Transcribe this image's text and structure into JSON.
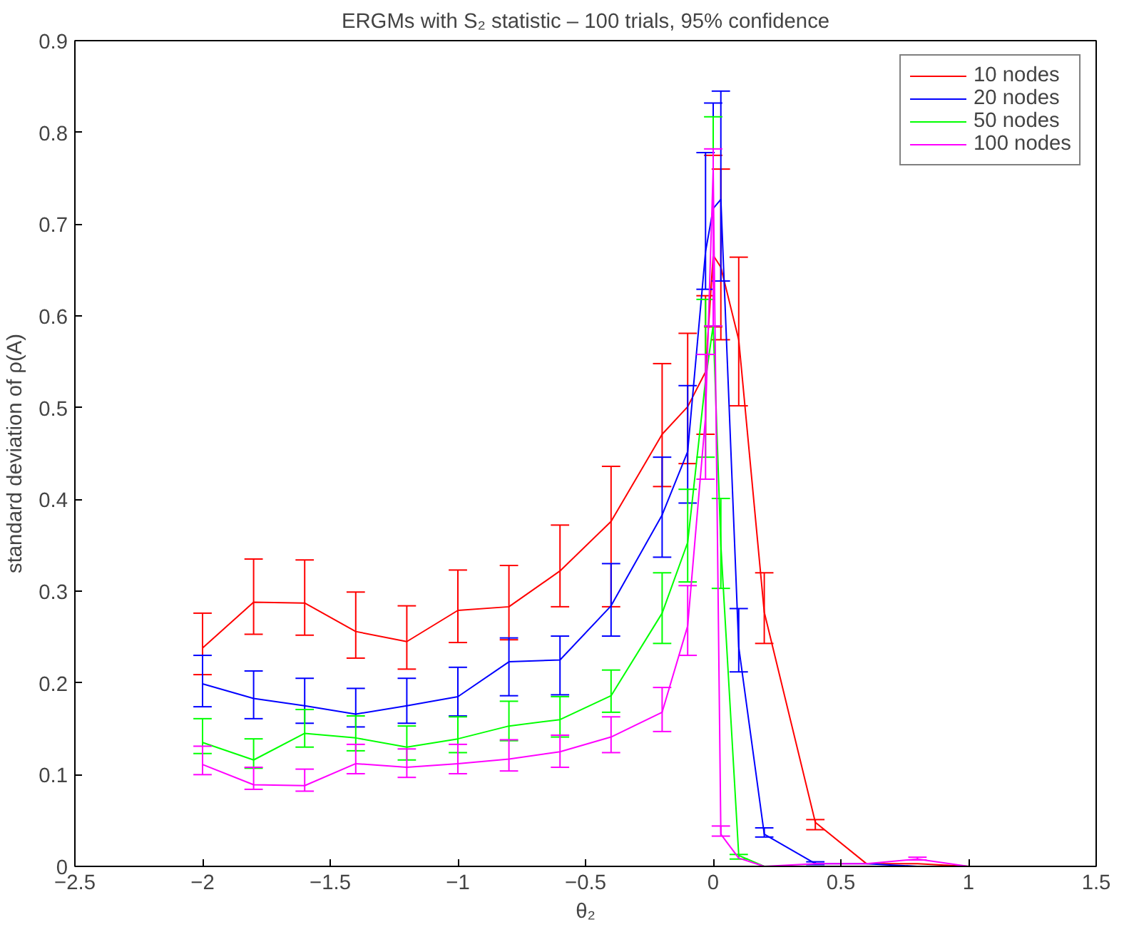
{
  "chart_data": {
    "type": "line",
    "title": "ERGMs with S₂ statistic – 100 trials, 95% confidence",
    "xlabel": "θ₂",
    "ylabel": "standard deviation of ρ(A)",
    "xlim": [
      -2.5,
      1.5
    ],
    "ylim": [
      0,
      0.9
    ],
    "xticks": [
      {
        "value": -2.5,
        "label": "−2.5"
      },
      {
        "value": -2,
        "label": "−2"
      },
      {
        "value": -1.5,
        "label": "−1.5"
      },
      {
        "value": -1,
        "label": "−1"
      },
      {
        "value": -0.5,
        "label": "−0.5"
      },
      0,
      0.5,
      1,
      1.5
    ],
    "yticks": [
      0,
      0.1,
      0.2,
      0.3,
      0.4,
      0.5,
      0.6,
      0.7,
      0.8,
      0.9
    ],
    "grid": false,
    "legend": "top right",
    "marker": "none",
    "line_style": "solid",
    "x": [
      -2,
      -1.8,
      -1.6,
      -1.4,
      -1.2,
      -1,
      -0.8,
      -0.6,
      -0.4,
      -0.2,
      -0.1,
      -0.03,
      0,
      0.03,
      0.1,
      0.2,
      0.4,
      0.6,
      0.8,
      1
    ],
    "series": [
      {
        "name": "10 nodes",
        "color": "#ff0000",
        "values": [
          0.238,
          0.288,
          0.287,
          0.256,
          0.245,
          0.279,
          0.283,
          0.322,
          0.376,
          0.471,
          0.501,
          0.539,
          0.666,
          0.653,
          0.574,
          0.277,
          0.048,
          0.003,
          0.003,
          0.0
        ],
        "errors": [
          [
            0.209,
            0.276
          ],
          [
            0.253,
            0.335
          ],
          [
            0.252,
            0.334
          ],
          [
            0.227,
            0.299
          ],
          [
            0.215,
            0.284
          ],
          [
            0.244,
            0.323
          ],
          [
            0.247,
            0.328
          ],
          [
            0.283,
            0.372
          ],
          [
            0.283,
            0.436
          ],
          [
            0.414,
            0.548
          ],
          [
            0.439,
            0.581
          ],
          [
            0.471,
            0.622
          ],
          [
            0.588,
            0.775
          ],
          [
            0.574,
            0.76
          ],
          [
            0.502,
            0.664
          ],
          [
            0.243,
            0.32
          ],
          [
            0.04,
            0.051
          ],
          null,
          null,
          null
        ]
      },
      {
        "name": "20 nodes",
        "color": "#0000ff",
        "values": [
          0.199,
          0.183,
          0.175,
          0.166,
          0.175,
          0.185,
          0.223,
          0.225,
          0.284,
          0.383,
          0.452,
          0.67,
          0.717,
          0.727,
          0.239,
          0.035,
          0.003,
          0.003,
          0.0,
          0.0
        ],
        "errors": [
          [
            0.174,
            0.23
          ],
          [
            0.161,
            0.213
          ],
          [
            0.156,
            0.205
          ],
          [
            0.152,
            0.194
          ],
          [
            0.156,
            0.205
          ],
          [
            0.164,
            0.217
          ],
          [
            0.186,
            0.249
          ],
          [
            0.187,
            0.251
          ],
          [
            0.251,
            0.33
          ],
          [
            0.337,
            0.446
          ],
          [
            0.396,
            0.524
          ],
          [
            0.629,
            0.778
          ],
          [
            0.589,
            0.832
          ],
          [
            0.638,
            0.845
          ],
          [
            0.212,
            0.281
          ],
          [
            0.032,
            0.042
          ],
          [
            0.002,
            0.005
          ],
          null,
          null,
          null
        ]
      },
      {
        "name": "50 nodes",
        "color": "#00ff00",
        "values": [
          0.135,
          0.116,
          0.145,
          0.14,
          0.13,
          0.139,
          0.153,
          0.16,
          0.186,
          0.276,
          0.353,
          0.53,
          0.59,
          0.35,
          0.012,
          0.0,
          0.0,
          null,
          null,
          null
        ],
        "errors": [
          [
            0.123,
            0.161
          ],
          [
            0.107,
            0.139
          ],
          [
            0.13,
            0.171
          ],
          [
            0.126,
            0.164
          ],
          [
            0.116,
            0.153
          ],
          [
            0.124,
            0.163
          ],
          [
            0.137,
            0.18
          ],
          [
            0.141,
            0.185
          ],
          [
            0.168,
            0.214
          ],
          [
            0.243,
            0.32
          ],
          [
            0.31,
            0.411
          ],
          [
            0.446,
            0.618
          ],
          [
            0.589,
            0.817
          ],
          [
            0.303,
            0.401
          ],
          [
            0.008,
            0.013
          ],
          null,
          null,
          null,
          null,
          null
        ]
      },
      {
        "name": "100 nodes",
        "color": "#ff00ff",
        "values": [
          0.111,
          0.089,
          0.088,
          0.112,
          0.108,
          0.112,
          0.117,
          0.125,
          0.141,
          0.168,
          0.262,
          0.49,
          0.76,
          0.035,
          0.009,
          0.0,
          0.003,
          0.003,
          0.008,
          0.0
        ],
        "errors": [
          [
            0.1,
            0.131
          ],
          [
            0.084,
            0.108
          ],
          [
            0.082,
            0.106
          ],
          [
            0.101,
            0.133
          ],
          [
            0.097,
            0.128
          ],
          [
            0.101,
            0.133
          ],
          [
            0.104,
            0.138
          ],
          [
            0.108,
            0.143
          ],
          [
            0.124,
            0.163
          ],
          [
            0.147,
            0.195
          ],
          [
            0.23,
            0.306
          ],
          [
            0.422,
            0.558
          ],
          [
            0.589,
            0.782
          ],
          [
            0.033,
            0.044
          ],
          null,
          null,
          null,
          null,
          [
            0.007,
            0.01
          ],
          null
        ]
      }
    ]
  }
}
